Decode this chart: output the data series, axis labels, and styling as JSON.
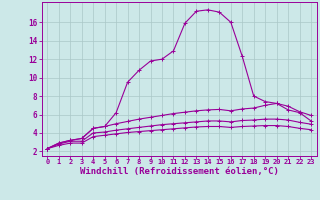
{
  "background_color": "#cce8e8",
  "line_color": "#990099",
  "grid_color": "#aac8c8",
  "xlabel": "Windchill (Refroidissement éolien,°C)",
  "xlabel_fontsize": 6.5,
  "xtick_fontsize": 5,
  "ytick_fontsize": 5.5,
  "xlim": [
    -0.5,
    23.5
  ],
  "ylim": [
    1.5,
    18.2
  ],
  "yticks": [
    2,
    4,
    6,
    8,
    10,
    12,
    14,
    16
  ],
  "xticks": [
    0,
    1,
    2,
    3,
    4,
    5,
    6,
    7,
    8,
    9,
    10,
    11,
    12,
    13,
    14,
    15,
    16,
    17,
    18,
    19,
    20,
    21,
    22,
    23
  ],
  "line1_x": [
    0,
    1,
    2,
    3,
    4,
    5,
    6,
    7,
    8,
    9,
    10,
    11,
    12,
    13,
    14,
    15,
    16,
    17,
    18,
    19,
    20,
    21,
    22,
    23
  ],
  "line1_y": [
    2.3,
    2.9,
    3.2,
    3.4,
    4.5,
    4.7,
    6.2,
    9.5,
    10.8,
    11.8,
    12.0,
    12.9,
    15.9,
    17.2,
    17.35,
    17.1,
    16.0,
    12.3,
    8.0,
    7.4,
    7.2,
    6.5,
    6.2,
    5.3
  ],
  "line2_x": [
    0,
    1,
    2,
    3,
    4,
    5,
    6,
    7,
    8,
    9,
    10,
    11,
    12,
    13,
    14,
    15,
    16,
    17,
    18,
    19,
    20,
    21,
    22,
    23
  ],
  "line2_y": [
    2.3,
    2.9,
    3.2,
    3.4,
    4.5,
    4.7,
    5.0,
    5.25,
    5.5,
    5.7,
    5.9,
    6.1,
    6.25,
    6.4,
    6.5,
    6.55,
    6.4,
    6.6,
    6.7,
    7.0,
    7.2,
    6.9,
    6.3,
    5.9
  ],
  "line3_x": [
    0,
    1,
    2,
    3,
    4,
    5,
    6,
    7,
    8,
    9,
    10,
    11,
    12,
    13,
    14,
    15,
    16,
    17,
    18,
    19,
    20,
    21,
    22,
    23
  ],
  "line3_y": [
    2.3,
    2.8,
    3.1,
    3.1,
    4.0,
    4.1,
    4.3,
    4.45,
    4.6,
    4.75,
    4.9,
    5.0,
    5.1,
    5.2,
    5.3,
    5.3,
    5.2,
    5.35,
    5.4,
    5.5,
    5.5,
    5.4,
    5.15,
    4.95
  ],
  "line4_x": [
    0,
    1,
    2,
    3,
    4,
    5,
    6,
    7,
    8,
    9,
    10,
    11,
    12,
    13,
    14,
    15,
    16,
    17,
    18,
    19,
    20,
    21,
    22,
    23
  ],
  "line4_y": [
    2.3,
    2.65,
    2.9,
    2.9,
    3.6,
    3.75,
    3.9,
    4.05,
    4.15,
    4.25,
    4.35,
    4.45,
    4.55,
    4.65,
    4.7,
    4.7,
    4.6,
    4.7,
    4.75,
    4.8,
    4.8,
    4.7,
    4.5,
    4.35
  ]
}
